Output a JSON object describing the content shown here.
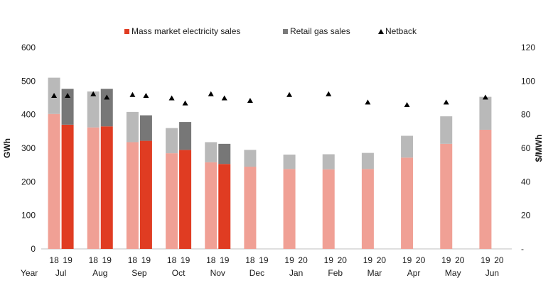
{
  "chart_data": {
    "type": "bar",
    "legend": {
      "placement": "top",
      "items": [
        {
          "label": "Mass market electricity sales",
          "shape": "square",
          "color": "#e03c22"
        },
        {
          "label": "Retail gas sales",
          "shape": "square",
          "color": "#7a7a7a"
        },
        {
          "label": "Netback",
          "shape": "triangle",
          "color": "#000000"
        }
      ]
    },
    "ylabel_left": "GWh",
    "ylabel_right": "$/MWh",
    "ylim_left": [
      0,
      600
    ],
    "ylim_right": [
      0,
      120
    ],
    "yticks_left": [
      "0",
      "100",
      "200",
      "300",
      "400",
      "500",
      "600"
    ],
    "yticks_right": [
      "-",
      "20",
      "40",
      "60",
      "80",
      "100",
      "120"
    ],
    "x_row_label": "Year",
    "months": [
      {
        "month": "Jul",
        "bars": [
          {
            "year": "18",
            "elec": 402,
            "gas": 108,
            "netback": 91.5
          },
          {
            "year": "19",
            "elec": 370,
            "gas": 107,
            "netback": 91.5
          }
        ]
      },
      {
        "month": "Aug",
        "bars": [
          {
            "year": "18",
            "elec": 362,
            "gas": 107,
            "netback": 92.5
          },
          {
            "year": "19",
            "elec": 365,
            "gas": 112,
            "netback": 90.5
          }
        ]
      },
      {
        "month": "Sep",
        "bars": [
          {
            "year": "18",
            "elec": 318,
            "gas": 90,
            "netback": 92
          },
          {
            "year": "19",
            "elec": 322,
            "gas": 76,
            "netback": 91.5
          }
        ]
      },
      {
        "month": "Oct",
        "bars": [
          {
            "year": "18",
            "elec": 285,
            "gas": 75,
            "netback": 90
          },
          {
            "year": "19",
            "elec": 295,
            "gas": 83,
            "netback": 87
          }
        ]
      },
      {
        "month": "Nov",
        "bars": [
          {
            "year": "18",
            "elec": 258,
            "gas": 60,
            "netback": 92.5
          },
          {
            "year": "19",
            "elec": 253,
            "gas": 60,
            "netback": 90
          }
        ]
      },
      {
        "month": "Dec",
        "bars": [
          {
            "year": "18",
            "elec": 245,
            "gas": 50,
            "netback": 88.5
          },
          {
            "year": "19",
            "elec": null,
            "gas": null,
            "netback": null
          }
        ]
      },
      {
        "month": "Jan",
        "bars": [
          {
            "year": "19",
            "elec": 238,
            "gas": 43,
            "netback": 92
          },
          {
            "year": "20",
            "elec": null,
            "gas": null,
            "netback": null
          }
        ]
      },
      {
        "month": "Feb",
        "bars": [
          {
            "year": "19",
            "elec": 237,
            "gas": 45,
            "netback": 92.5
          },
          {
            "year": "20",
            "elec": null,
            "gas": null,
            "netback": null
          }
        ]
      },
      {
        "month": "Mar",
        "bars": [
          {
            "year": "19",
            "elec": 238,
            "gas": 48,
            "netback": 87.5
          },
          {
            "year": "20",
            "elec": null,
            "gas": null,
            "netback": null
          }
        ]
      },
      {
        "month": "Apr",
        "bars": [
          {
            "year": "19",
            "elec": 272,
            "gas": 65,
            "netback": 86
          },
          {
            "year": "20",
            "elec": null,
            "gas": null,
            "netback": null
          }
        ]
      },
      {
        "month": "May",
        "bars": [
          {
            "year": "19",
            "elec": 313,
            "gas": 82,
            "netback": 87.5
          },
          {
            "year": "20",
            "elec": null,
            "gas": null,
            "netback": null
          }
        ]
      },
      {
        "month": "Jun",
        "bars": [
          {
            "year": "19",
            "elec": 355,
            "gas": 98,
            "netback": 90.5
          },
          {
            "year": "20",
            "elec": null,
            "gas": null,
            "netback": null
          }
        ]
      }
    ],
    "colors": {
      "elec_prior": "#f0a095",
      "elec_current": "#e03c22",
      "gas_prior": "#b9b9b9",
      "gas_current": "#777777",
      "netback": "#000000",
      "axis": "#bfbfbf"
    }
  }
}
